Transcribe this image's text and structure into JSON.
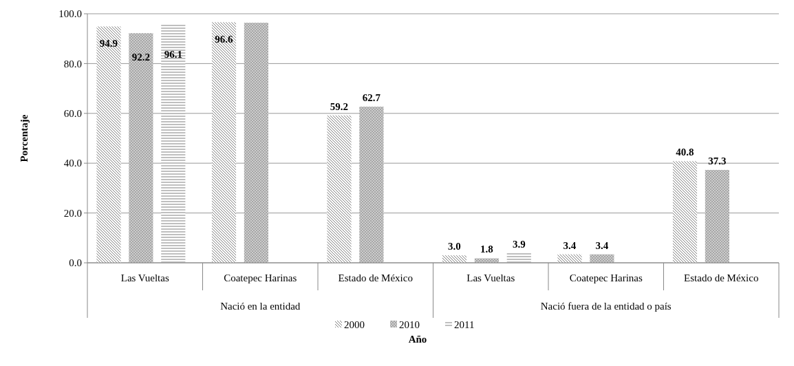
{
  "chart_data": {
    "type": "bar",
    "xlabel": "Año",
    "ylabel": "Porcentaje",
    "categories": [
      "Las Vueltas",
      "Coatepec Harinas",
      "Estado de México",
      "Las Vueltas",
      "Coatepec Harinas",
      "Estado de México"
    ],
    "annotations": [
      "Nació en la entidad",
      "Nació fuera de la entidad o país"
    ],
    "series": [
      {
        "name": "2000",
        "color": "#7f7f7f",
        "values": [
          94.9,
          96.6,
          59.2,
          3.0,
          3.4,
          40.8
        ],
        "value_labels": [
          "94.9",
          "96.6",
          "59.2",
          "3.0",
          "3.4",
          "40.8"
        ]
      },
      {
        "name": "2010",
        "color": "#a6a6a6",
        "values": [
          92.2,
          96.4,
          62.7,
          1.8,
          3.4,
          37.3
        ],
        "value_labels": [
          "92.2",
          null,
          "62.7",
          "1.8",
          "3.4",
          "37.3"
        ]
      },
      {
        "name": "2011",
        "color": "#bfbfbf",
        "values": [
          96.1,
          null,
          null,
          3.9,
          null,
          null
        ],
        "value_labels": [
          "96.1",
          null,
          null,
          "3.9",
          null,
          null
        ]
      }
    ],
    "ylim": [
      0,
      100
    ],
    "yticks": [
      {
        "value": 0,
        "label": "0.0"
      },
      {
        "value": 20,
        "label": "20.0"
      },
      {
        "value": 40,
        "label": "40.0"
      },
      {
        "value": 60,
        "label": "60.0"
      },
      {
        "value": 80,
        "label": "80.0"
      },
      {
        "value": 100,
        "label": "100.0"
      }
    ],
    "grid": "y",
    "legend": "bottom"
  }
}
